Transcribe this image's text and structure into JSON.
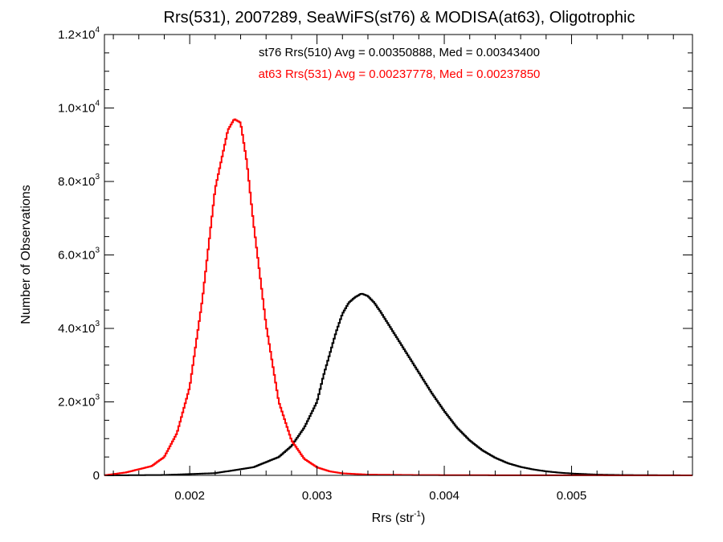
{
  "chart_data": {
    "type": "line",
    "title": "Rrs(531), 2007289, SeaWiFS(st76) & MODISA(at63), Oligotrophic",
    "xlabel": "Rrs (str",
    "xlabel_sup": "-1",
    "xlabel_close": ")",
    "ylabel": "Number of Observations",
    "xlim": [
      0.00133,
      0.00595
    ],
    "ylim": [
      0,
      12000
    ],
    "x_ticks": [
      {
        "value": 0.002,
        "label": "0.002"
      },
      {
        "value": 0.003,
        "label": "0.003"
      },
      {
        "value": 0.004,
        "label": "0.004"
      },
      {
        "value": 0.005,
        "label": "0.005"
      }
    ],
    "y_ticks": [
      {
        "value": 0,
        "mant": "0",
        "exp": ""
      },
      {
        "value": 2000,
        "mant": "2.0×10",
        "exp": "3"
      },
      {
        "value": 4000,
        "mant": "4.0×10",
        "exp": "3"
      },
      {
        "value": 6000,
        "mant": "6.0×10",
        "exp": "3"
      },
      {
        "value": 8000,
        "mant": "8.0×10",
        "exp": "3"
      },
      {
        "value": 10000,
        "mant": "1.0×10",
        "exp": "4"
      },
      {
        "value": 12000,
        "mant": "1.2×10",
        "exp": "4"
      }
    ],
    "annotations": [
      {
        "text": "st76 Rrs(510) Avg = 0.00350888, Med = 0.00343400",
        "color": "#000000"
      },
      {
        "text": "at63 Rrs(531) Avg = 0.00237778, Med = 0.00237850",
        "color": "#ff0000"
      }
    ],
    "grid": false,
    "series": [
      {
        "color": "#000000",
        "x": [
          0.00133,
          0.0018,
          0.0022,
          0.0025,
          0.0027,
          0.0028,
          0.0029,
          0.003,
          0.00305,
          0.0031,
          0.00315,
          0.0032,
          0.00325,
          0.0033,
          0.00335,
          0.0034,
          0.00345,
          0.0035,
          0.0036,
          0.0037,
          0.0038,
          0.0039,
          0.004,
          0.0041,
          0.0042,
          0.0043,
          0.0044,
          0.0045,
          0.0046,
          0.0047,
          0.0048,
          0.0049,
          0.005,
          0.0052,
          0.0054,
          0.00595
        ],
        "y": [
          0,
          10,
          60,
          220,
          500,
          800,
          1300,
          2000,
          2700,
          3300,
          3900,
          4400,
          4700,
          4850,
          4950,
          4880,
          4700,
          4450,
          3900,
          3350,
          2800,
          2250,
          1750,
          1300,
          950,
          680,
          480,
          330,
          230,
          160,
          110,
          75,
          50,
          20,
          8,
          0
        ]
      },
      {
        "color": "#ff0000",
        "x": [
          0.00133,
          0.0015,
          0.0017,
          0.0018,
          0.0019,
          0.002,
          0.0021,
          0.0022,
          0.0023,
          0.00235,
          0.0024,
          0.00245,
          0.0025,
          0.0026,
          0.0027,
          0.0028,
          0.0029,
          0.003,
          0.0031,
          0.0032,
          0.0034,
          0.0038,
          0.0045,
          0.00595
        ],
        "y": [
          0,
          80,
          250,
          500,
          1150,
          2400,
          4800,
          7800,
          9400,
          9700,
          9600,
          8500,
          6900,
          4100,
          2000,
          950,
          450,
          220,
          110,
          55,
          20,
          8,
          3,
          0
        ]
      }
    ]
  }
}
